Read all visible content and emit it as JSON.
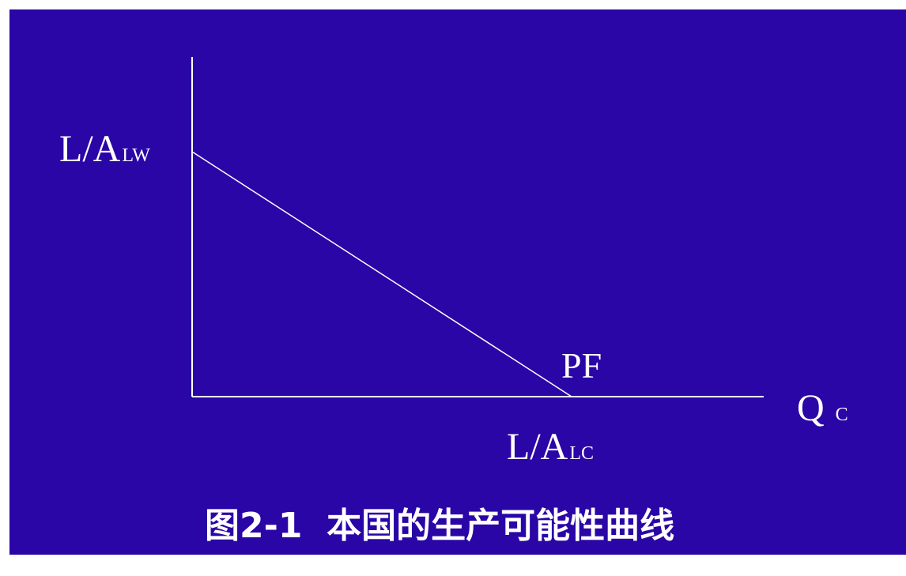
{
  "colors": {
    "panel_bg": "#2a06a6",
    "foreground": "#ffffff"
  },
  "diagram": {
    "y_intercept_label": {
      "main": "L/A",
      "sub": "LW"
    },
    "x_intercept_label": {
      "main": "L/A",
      "sub": "LC"
    },
    "x_axis_label": {
      "main": "Q",
      "sub": "C"
    },
    "curve_label": "PF",
    "caption": "图2-1  本国的生产可能性曲线"
  }
}
